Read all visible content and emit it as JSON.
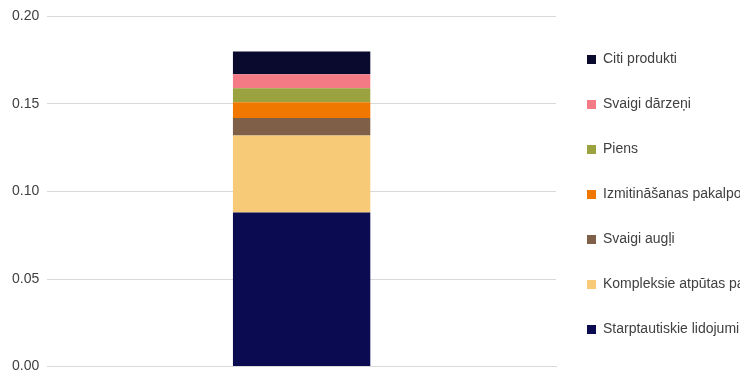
{
  "chart_data": {
    "type": "bar",
    "stacked": true,
    "categories": [
      null
    ],
    "series": [
      {
        "name": "Starptautiskie lidojumi",
        "color": "#0b0b52",
        "values": [
          0.088
        ]
      },
      {
        "name": "Kompleksie atpūtas pakalpojumi ārzemēs",
        "color": "#f7ca78",
        "values": [
          0.044
        ]
      },
      {
        "name": "Svaigi augļi",
        "color": "#7f5f47",
        "values": [
          0.01
        ]
      },
      {
        "name": "Izmitināšanas pakalpojumi",
        "color": "#f07800",
        "values": [
          0.009
        ]
      },
      {
        "name": "Piens",
        "color": "#9aa340",
        "values": [
          0.008
        ]
      },
      {
        "name": "Svaigi dārzeņi",
        "color": "#f47a86",
        "values": [
          0.008
        ]
      },
      {
        "name": "Citi produkti",
        "color": "#0a0a2e",
        "values": [
          0.013
        ]
      }
    ],
    "ylim": [
      0,
      0.2
    ],
    "yticks": [
      {
        "value": 0,
        "label": "0.00"
      },
      {
        "value": 0.05,
        "label": "0.05"
      },
      {
        "value": 0.1,
        "label": "0.10"
      },
      {
        "value": 0.15,
        "label": "0.15"
      },
      {
        "value": 0.2,
        "label": "0.20"
      }
    ],
    "grid": true,
    "legend": "right",
    "tick_labels": "y"
  }
}
